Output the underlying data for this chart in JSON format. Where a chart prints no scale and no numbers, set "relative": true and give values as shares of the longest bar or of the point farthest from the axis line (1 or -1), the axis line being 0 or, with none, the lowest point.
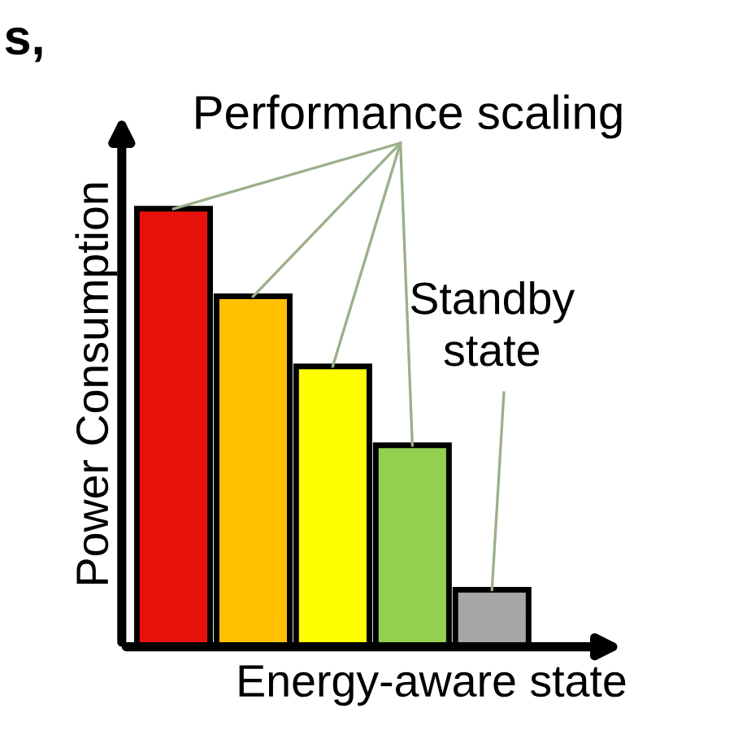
{
  "chart_data": {
    "type": "bar",
    "relative": true,
    "xlabel": "Energy-aware state",
    "ylabel": "Power Consumption",
    "categories": [
      null,
      null,
      null,
      null,
      null
    ],
    "values": [
      1,
      0.8,
      0.64,
      0.46,
      0.13
    ],
    "colors": [
      "#e8120c",
      "#ffc000",
      "#ffff00",
      "#92d050",
      "#a6a6a6"
    ],
    "annotations": [
      "s,",
      "Performance scaling",
      "Standby\nstate"
    ],
    "grid": false,
    "legend": false
  }
}
